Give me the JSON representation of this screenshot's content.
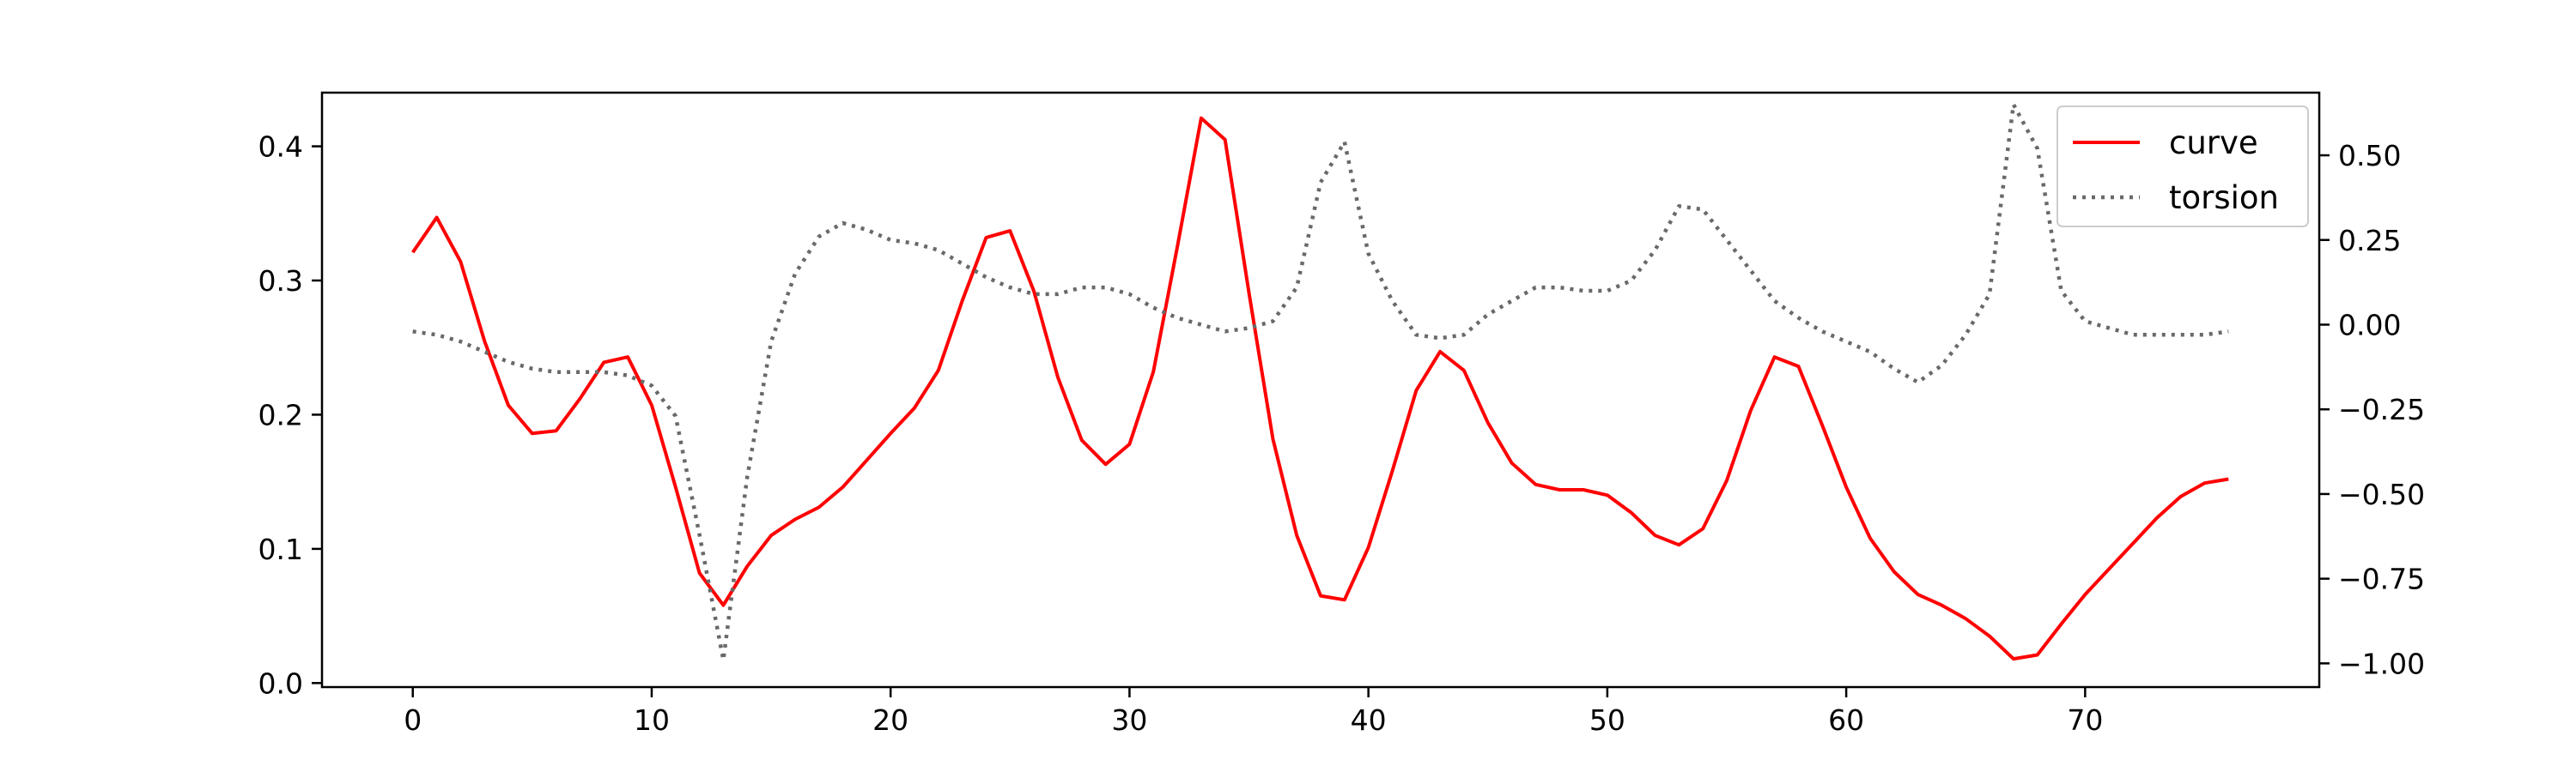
{
  "chart_data": {
    "type": "line",
    "title": "",
    "xlabel": "",
    "ylabel": "",
    "xlim": [
      -3.8,
      79.8
    ],
    "xticks": [
      0,
      10,
      20,
      30,
      40,
      50,
      60,
      70
    ],
    "xtick_labels": [
      "0",
      "10",
      "20",
      "30",
      "40",
      "50",
      "60",
      "70"
    ],
    "y_left": {
      "lim": [
        -0.003,
        0.44
      ],
      "ticks": [
        0.0,
        0.1,
        0.2,
        0.3,
        0.4
      ],
      "tick_labels": [
        "0.0",
        "0.1",
        "0.2",
        "0.3",
        "0.4"
      ]
    },
    "y_right": {
      "lim": [
        -1.07,
        0.685
      ],
      "ticks": [
        -1.0,
        -0.75,
        -0.5,
        -0.25,
        0.0,
        0.25,
        0.5
      ],
      "tick_labels": [
        "−1.00",
        "−0.75",
        "−0.50",
        "−0.25",
        "0.00",
        "0.25",
        "0.50"
      ]
    },
    "legend_placement": "top-right",
    "grid": false,
    "series": [
      {
        "name": "curve",
        "axis": "left",
        "color": "#ff0000",
        "style": "solid",
        "x_start": 0,
        "values": [
          0.321,
          0.347,
          0.314,
          0.255,
          0.207,
          0.186,
          0.188,
          0.212,
          0.239,
          0.243,
          0.207,
          0.146,
          0.082,
          0.058,
          0.087,
          0.11,
          0.122,
          0.131,
          0.146,
          0.166,
          0.186,
          0.205,
          0.233,
          0.285,
          0.332,
          0.337,
          0.292,
          0.228,
          0.181,
          0.163,
          0.178,
          0.232,
          0.325,
          0.421,
          0.405,
          0.291,
          0.182,
          0.11,
          0.065,
          0.062,
          0.101,
          0.158,
          0.218,
          0.247,
          0.233,
          0.194,
          0.164,
          0.148,
          0.144,
          0.144,
          0.14,
          0.127,
          0.11,
          0.103,
          0.115,
          0.151,
          0.203,
          0.243,
          0.236,
          0.192,
          0.146,
          0.108,
          0.083,
          0.066,
          0.058,
          0.048,
          0.035,
          0.018,
          0.021,
          0.044,
          0.066,
          0.085,
          0.104,
          0.123,
          0.139,
          0.149,
          0.152
        ]
      },
      {
        "name": "torsion",
        "axis": "right",
        "color": "#696969",
        "style": "dotted",
        "x_start": 0,
        "values": [
          -0.02,
          -0.03,
          -0.05,
          -0.08,
          -0.11,
          -0.13,
          -0.14,
          -0.14,
          -0.14,
          -0.15,
          -0.18,
          -0.27,
          -0.62,
          -0.99,
          -0.45,
          -0.05,
          0.15,
          0.26,
          0.3,
          0.28,
          0.25,
          0.24,
          0.22,
          0.18,
          0.14,
          0.11,
          0.09,
          0.09,
          0.11,
          0.11,
          0.09,
          0.05,
          0.02,
          0.0,
          -0.02,
          -0.01,
          0.01,
          0.11,
          0.42,
          0.54,
          0.21,
          0.07,
          -0.03,
          -0.04,
          -0.03,
          0.03,
          0.07,
          0.11,
          0.11,
          0.1,
          0.1,
          0.13,
          0.22,
          0.35,
          0.34,
          0.25,
          0.16,
          0.07,
          0.02,
          -0.02,
          -0.05,
          -0.08,
          -0.13,
          -0.17,
          -0.12,
          -0.03,
          0.09,
          0.65,
          0.52,
          0.1,
          0.01,
          -0.01,
          -0.03,
          -0.03,
          -0.03,
          -0.03,
          -0.02
        ]
      }
    ]
  }
}
